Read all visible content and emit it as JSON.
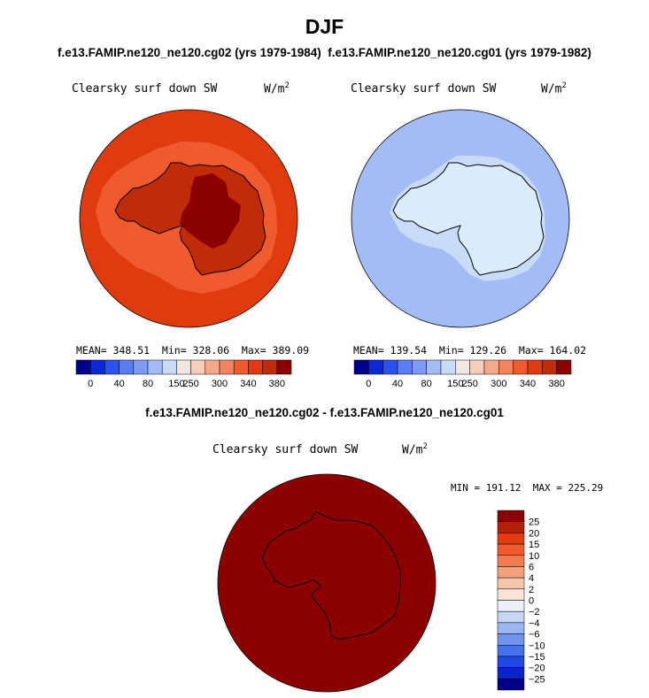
{
  "figure": {
    "title": "DJF",
    "header": "f.e13.FAMIP.ne120_ne120.cg02 (yrs 1979-1984)  f.e13.FAMIP.ne120_ne120.cg01 (yrs 1979-1982)",
    "diff_title": "f.e13.FAMIP.ne120_ne120.cg02 - f.e13.FAMIP.ne120_ne120.cg01"
  },
  "panels": [
    {
      "variable": "Clearsky surf down SW",
      "units": "W/m",
      "units_exp": "2",
      "stats": "MEAN= 348.51  Min= 328.06  Max= 389.09",
      "fill_levels": {
        "outer_ocean": 340,
        "mid_ring": 360,
        "ice_shelf": 370,
        "interior": 380
      }
    },
    {
      "variable": "Clearsky surf down SW",
      "units": "W/m",
      "units_exp": "2",
      "stats": "MEAN= 139.54  Min= 129.26  Max= 164.02",
      "fill_levels": {
        "outer_ocean": 130,
        "continent": 150
      }
    },
    {
      "variable": "Clearsky surf down SW",
      "units": "W/m",
      "units_exp": "2",
      "stats": "MIN = 191.12  MAX = 225.29",
      "fill_levels": {
        "all": 25
      }
    }
  ],
  "colorbar_abs": {
    "colors": [
      "#00008b",
      "#0b27d6",
      "#2b52f0",
      "#5a7cf5",
      "#7d9bf5",
      "#a4bcf5",
      "#c9dcf7",
      "#f2e6e3",
      "#f6cdb9",
      "#f4aa8a",
      "#f3845f",
      "#ef5b2f",
      "#df3b0f",
      "#c02c0a",
      "#8b0000"
    ],
    "tick_labels": [
      "0",
      "40",
      "80",
      "150",
      "250",
      "300",
      "340",
      "380"
    ]
  },
  "colorbar_diff": {
    "colors": [
      "#8b0000",
      "#b42005",
      "#e03c12",
      "#f25a2e",
      "#f47a4f",
      "#f3a07b",
      "#f6c6ac",
      "#fbe3d6",
      "#eaf1fb",
      "#c6d6f5",
      "#9ab6f3",
      "#6f93f1",
      "#4571ee",
      "#2049e4",
      "#0a22c8",
      "#00008b"
    ],
    "tick_labels": [
      "25",
      "20",
      "15",
      "10",
      "6",
      "4",
      "2",
      "0",
      "−2",
      "−4",
      "−6",
      "−10",
      "−15",
      "−20",
      "−25"
    ]
  }
}
